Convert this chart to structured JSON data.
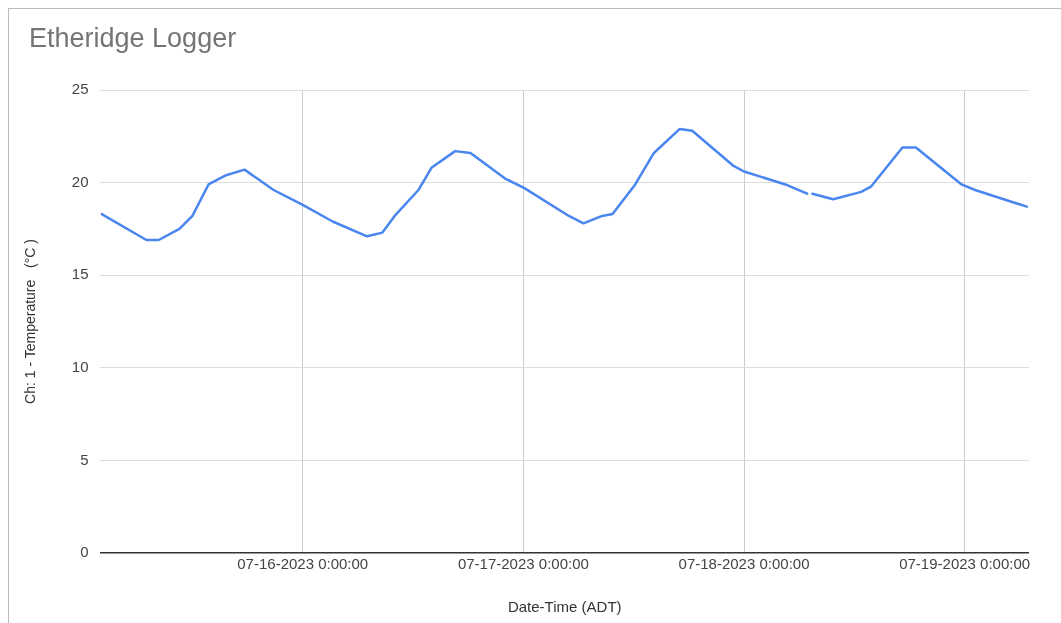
{
  "chart_data": {
    "type": "line",
    "title": "Etheridge Logger",
    "xlabel": "Date-Time (ADT)",
    "ylabel": "Ch: 1 - Temperature   (°C )",
    "x": [
      "2023-07-15T02:08",
      "2023-07-15T07:00",
      "2023-07-15T08:20",
      "2023-07-15T10:35",
      "2023-07-15T12:00",
      "2023-07-15T13:45",
      "2023-07-15T15:40",
      "2023-07-15T17:40",
      "2023-07-15T20:50",
      "2023-07-16T00:00",
      "2023-07-16T03:15",
      "2023-07-16T07:00",
      "2023-07-16T08:40",
      "2023-07-16T10:00",
      "2023-07-16T12:35",
      "2023-07-16T14:00",
      "2023-07-16T16:35",
      "2023-07-16T18:15",
      "2023-07-16T22:05",
      "2023-07-17T00:07",
      "2023-07-17T04:57",
      "2023-07-17T06:32",
      "2023-07-17T08:34",
      "2023-07-17T09:42",
      "2023-07-17T12:10",
      "2023-07-17T14:12",
      "2023-07-17T17:01",
      "2023-07-17T18:22",
      "2023-07-17T22:52",
      "2023-07-18T00:00",
      "2023-07-18T04:30",
      "2023-07-18T06:52",
      "2023-07-18T07:10",
      "2023-07-18T07:26",
      "2023-07-18T09:42",
      "2023-07-18T12:45",
      "2023-07-18T13:51",
      "2023-07-18T17:14",
      "2023-07-18T18:42",
      "2023-07-18T23:40",
      "2023-07-19T01:08",
      "2023-07-19T06:46"
    ],
    "series": [
      {
        "color": "#4a86f0",
        "values": [
          18.3,
          16.9,
          16.9,
          17.5,
          18.2,
          19.9,
          20.4,
          20.7,
          19.6,
          18.8,
          17.9,
          17.1,
          17.3,
          18.2,
          19.6,
          20.8,
          21.7,
          21.6,
          20.2,
          19.7,
          18.2,
          17.8,
          18.2,
          18.3,
          19.9,
          21.6,
          22.9,
          22.8,
          20.9,
          20.6,
          19.9,
          19.4,
          null,
          19.4,
          19.1,
          19.5,
          19.8,
          21.9,
          21.9,
          19.9,
          19.6,
          18.7
        ]
      }
    ],
    "xlim": [
      "2023-07-15T02:00",
      "2023-07-19T07:00"
    ],
    "xticks": [
      {
        "value": "2023-07-16T00:00",
        "label": "07-16-2023 0:00:00"
      },
      {
        "value": "2023-07-17T00:00",
        "label": "07-17-2023 0:00:00"
      },
      {
        "value": "2023-07-18T00:00",
        "label": "07-18-2023 0:00:00"
      },
      {
        "value": "2023-07-19T00:00",
        "label": "07-19-2023 0:00:00"
      }
    ],
    "ylim": [
      0,
      25
    ],
    "yticks": [
      0,
      5,
      10,
      15,
      20,
      25
    ],
    "grid": true,
    "legend": false,
    "marker": "none",
    "line_style": "solid"
  }
}
